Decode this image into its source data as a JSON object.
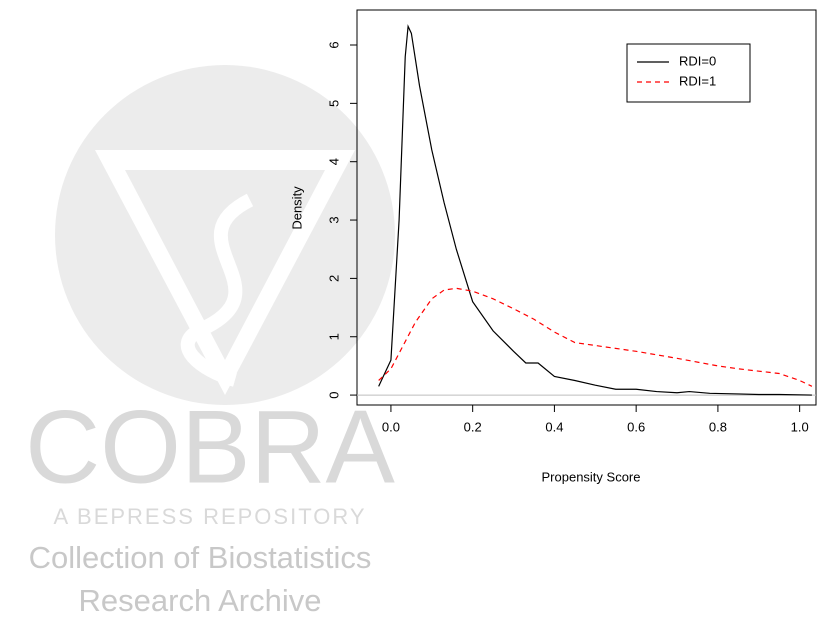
{
  "watermark": {
    "logo": "COBRA",
    "tagline": "A BEPRESS REPOSITORY",
    "line1": "Collection of Biostatistics",
    "line2": "Research Archive"
  },
  "chart_data": {
    "type": "line",
    "x_label": "Propensity Score",
    "y_label": "Density",
    "xlim": [
      -0.083,
      1.04
    ],
    "ylim": [
      -0.17,
      6.6
    ],
    "xticks": [
      {
        "value": 0,
        "label": "0.0"
      },
      0.2,
      0.4,
      0.6,
      0.8,
      {
        "value": 1,
        "label": "1.0"
      }
    ],
    "yticks": [
      0,
      1,
      2,
      3,
      4,
      5,
      6
    ],
    "hline": 0,
    "hline_color": "#bebebe",
    "legend_position": "top-right",
    "series": [
      {
        "name": "RDI=0",
        "color": "#000000",
        "dash": "solid",
        "x": [
          -0.03,
          0.0,
          0.02,
          0.035,
          0.042,
          0.05,
          0.07,
          0.1,
          0.13,
          0.16,
          0.2,
          0.25,
          0.3,
          0.33,
          0.36,
          0.4,
          0.45,
          0.5,
          0.55,
          0.6,
          0.65,
          0.7,
          0.73,
          0.78,
          0.85,
          0.9,
          0.95,
          1.03
        ],
        "values": [
          0.15,
          0.6,
          3.0,
          5.8,
          6.32,
          6.2,
          5.3,
          4.2,
          3.3,
          2.5,
          1.6,
          1.1,
          0.75,
          0.55,
          0.55,
          0.32,
          0.25,
          0.17,
          0.1,
          0.1,
          0.06,
          0.04,
          0.06,
          0.03,
          0.02,
          0.01,
          0.01,
          0.0
        ]
      },
      {
        "name": "RDI=1",
        "color": "#ff0000",
        "dash": "dashed",
        "x": [
          -0.03,
          0.0,
          0.03,
          0.06,
          0.1,
          0.13,
          0.16,
          0.2,
          0.25,
          0.3,
          0.35,
          0.4,
          0.45,
          0.5,
          0.6,
          0.7,
          0.8,
          0.85,
          0.9,
          0.95,
          1.0,
          1.03
        ],
        "values": [
          0.25,
          0.45,
          0.85,
          1.25,
          1.65,
          1.8,
          1.83,
          1.78,
          1.65,
          1.48,
          1.3,
          1.08,
          0.9,
          0.85,
          0.75,
          0.63,
          0.5,
          0.45,
          0.41,
          0.37,
          0.25,
          0.15
        ]
      }
    ]
  }
}
